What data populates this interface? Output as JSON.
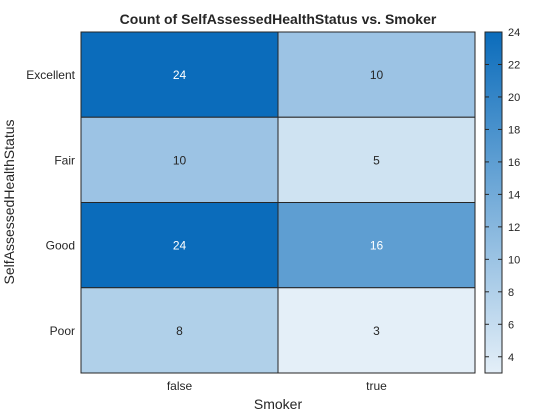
{
  "chart_data": {
    "type": "heatmap",
    "title": "Count of SelfAssessedHealthStatus vs. Smoker",
    "xlabel": "Smoker",
    "ylabel": "SelfAssessedHealthStatus",
    "x_categories": [
      "false",
      "true"
    ],
    "y_categories": [
      "Excellent",
      "Fair",
      "Good",
      "Poor"
    ],
    "values": [
      [
        24,
        10
      ],
      [
        10,
        5
      ],
      [
        24,
        16
      ],
      [
        8,
        3
      ]
    ],
    "colorbar": {
      "min": 3,
      "max": 24,
      "ticks": [
        4,
        6,
        8,
        10,
        12,
        14,
        16,
        18,
        20,
        22,
        24
      ]
    },
    "colors": {
      "low": "#e4eff8",
      "high": "#0b6cbb",
      "text_dark": "#262626",
      "text_light": "#ffffff",
      "grid": "#262626"
    }
  }
}
